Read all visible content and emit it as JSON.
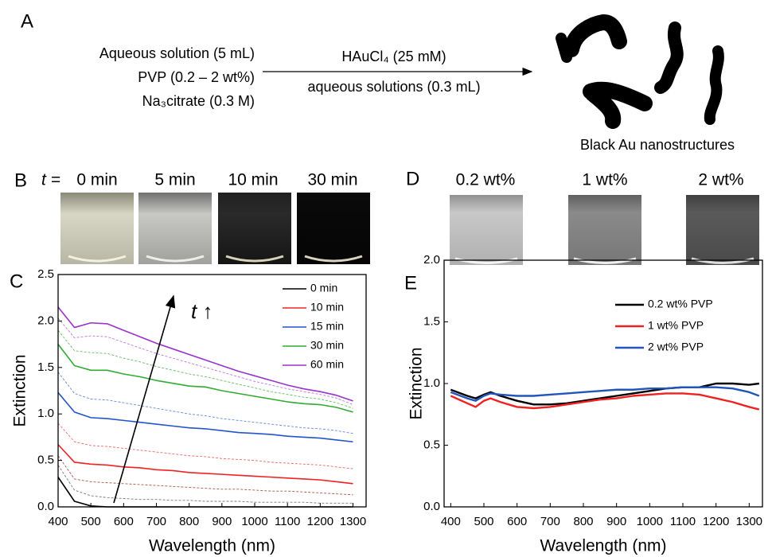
{
  "panels": [
    "A",
    "B",
    "C",
    "D",
    "E"
  ],
  "scheme": {
    "reactants": [
      "Aqueous solution (5 mL)",
      "PVP (0.2 – 2 wt%)",
      "Na₃citrate (0.3 M)"
    ],
    "arrow_top": "HAuCl₄ (25 mM)",
    "arrow_bottom": "aqueous solutions (0.3 mL)",
    "product": "Black Au nanostructures"
  },
  "photos_b": {
    "prefix": "t =",
    "labels": [
      "0 min",
      "5 min",
      "10 min",
      "30 min"
    ]
  },
  "photos_d": {
    "labels": [
      "0.2 wt%",
      "1 wt%",
      "2 wt%"
    ]
  },
  "chart_data": [
    {
      "type": "line",
      "xlabel": "Wavelength (nm)",
      "ylabel": "Extinction",
      "annotation": "t ↑",
      "xlim": [
        400,
        1340
      ],
      "ylim": [
        0,
        2.5
      ],
      "xticks": [
        400,
        500,
        600,
        700,
        800,
        900,
        1000,
        1100,
        1200,
        1300
      ],
      "yticks": [
        {
          "value": 0,
          "label": "0.0"
        },
        0.5,
        {
          "value": 1,
          "label": "1.0"
        },
        1.5,
        {
          "value": 2,
          "label": "2.0"
        },
        2.5
      ],
      "legend": "upper right",
      "x": [
        400,
        450,
        500,
        550,
        600,
        650,
        700,
        750,
        800,
        850,
        900,
        950,
        1000,
        1050,
        1100,
        1150,
        1200,
        1250,
        1300
      ],
      "series": [
        {
          "name": "0 min",
          "color": "#000000",
          "values": [
            0.32,
            0.06,
            0.01,
            0,
            0,
            0,
            0,
            0,
            0,
            0,
            0,
            0,
            0,
            0,
            0,
            0,
            0,
            0,
            0
          ]
        },
        {
          "name": "10 min",
          "color": "#ee2222",
          "values": [
            0.67,
            0.48,
            0.46,
            0.45,
            0.43,
            0.42,
            0.4,
            0.39,
            0.37,
            0.36,
            0.35,
            0.34,
            0.33,
            0.32,
            0.31,
            0.3,
            0.29,
            0.27,
            0.25
          ]
        },
        {
          "name": "15 min",
          "color": "#2255cc",
          "values": [
            1.23,
            1.02,
            0.96,
            0.95,
            0.93,
            0.91,
            0.89,
            0.87,
            0.85,
            0.84,
            0.82,
            0.8,
            0.79,
            0.78,
            0.76,
            0.75,
            0.74,
            0.72,
            0.7
          ]
        },
        {
          "name": "30 min",
          "color": "#33aa33",
          "values": [
            1.75,
            1.52,
            1.47,
            1.47,
            1.43,
            1.4,
            1.36,
            1.33,
            1.3,
            1.29,
            1.25,
            1.22,
            1.19,
            1.16,
            1.13,
            1.11,
            1.1,
            1.07,
            1.02
          ]
        },
        {
          "name": "60 min",
          "color": "#9933cc",
          "values": [
            2.15,
            1.93,
            1.98,
            1.97,
            1.9,
            1.83,
            1.76,
            1.7,
            1.64,
            1.58,
            1.52,
            1.46,
            1.41,
            1.36,
            1.31,
            1.27,
            1.24,
            1.2,
            1.14
          ]
        }
      ],
      "dashed_series": [
        {
          "color": "#777777",
          "values": [
            0.45,
            0.18,
            0.12,
            0.1,
            0.09,
            0.08,
            0.08,
            0.07,
            0.07,
            0.06,
            0.06,
            0.06,
            0.05,
            0.05,
            0.05,
            0.05,
            0.04,
            0.04,
            0.04
          ]
        },
        {
          "color": "#aa5544",
          "values": [
            0.55,
            0.3,
            0.27,
            0.26,
            0.25,
            0.24,
            0.23,
            0.22,
            0.21,
            0.2,
            0.19,
            0.19,
            0.18,
            0.17,
            0.17,
            0.16,
            0.15,
            0.14,
            0.13
          ]
        },
        {
          "color": "#ee6666",
          "values": [
            0.9,
            0.7,
            0.66,
            0.65,
            0.63,
            0.61,
            0.59,
            0.57,
            0.55,
            0.54,
            0.52,
            0.51,
            0.5,
            0.48,
            0.47,
            0.46,
            0.45,
            0.43,
            0.41
          ]
        },
        {
          "color": "#6688dd",
          "values": [
            1.45,
            1.22,
            1.16,
            1.15,
            1.12,
            1.09,
            1.06,
            1.03,
            1.0,
            0.98,
            0.95,
            0.93,
            0.91,
            0.89,
            0.87,
            0.85,
            0.84,
            0.82,
            0.79
          ]
        },
        {
          "color": "#66bb66",
          "values": [
            1.9,
            1.68,
            1.66,
            1.65,
            1.6,
            1.56,
            1.51,
            1.47,
            1.43,
            1.4,
            1.36,
            1.32,
            1.28,
            1.24,
            1.21,
            1.18,
            1.16,
            1.12,
            1.06
          ]
        },
        {
          "color": "#bb77dd",
          "values": [
            2.03,
            1.82,
            1.84,
            1.83,
            1.77,
            1.71,
            1.65,
            1.6,
            1.55,
            1.5,
            1.45,
            1.4,
            1.35,
            1.31,
            1.27,
            1.24,
            1.21,
            1.17,
            1.1
          ]
        }
      ]
    },
    {
      "type": "line",
      "xlabel": "Wavelength (nm)",
      "ylabel": "Extinction",
      "xlim": [
        380,
        1340
      ],
      "ylim": [
        0,
        2
      ],
      "xticks": [
        400,
        500,
        600,
        700,
        800,
        900,
        1000,
        1100,
        1200,
        1300
      ],
      "yticks": [
        {
          "value": 0,
          "label": "0.0"
        },
        0.5,
        {
          "value": 1,
          "label": "1.0"
        },
        1.5,
        {
          "value": 2,
          "label": "2.0"
        }
      ],
      "legend": "upper right",
      "x": [
        400,
        450,
        475,
        500,
        520,
        550,
        600,
        650,
        700,
        750,
        800,
        850,
        900,
        950,
        1000,
        1050,
        1100,
        1150,
        1200,
        1250,
        1300,
        1330
      ],
      "series": [
        {
          "name": "0.2 wt% PVP",
          "color": "#000000",
          "values": [
            0.95,
            0.9,
            0.88,
            0.91,
            0.93,
            0.9,
            0.86,
            0.83,
            0.83,
            0.84,
            0.86,
            0.88,
            0.9,
            0.92,
            0.94,
            0.96,
            0.97,
            0.97,
            1.0,
            1.0,
            0.99,
            1.0
          ]
        },
        {
          "name": "1 wt% PVP",
          "color": "#ee2222",
          "values": [
            0.9,
            0.84,
            0.81,
            0.86,
            0.88,
            0.85,
            0.81,
            0.8,
            0.81,
            0.83,
            0.85,
            0.87,
            0.88,
            0.9,
            0.91,
            0.92,
            0.92,
            0.91,
            0.88,
            0.85,
            0.81,
            0.79
          ]
        },
        {
          "name": "2 wt% PVP",
          "color": "#2255bb",
          "values": [
            0.93,
            0.88,
            0.86,
            0.9,
            0.92,
            0.91,
            0.9,
            0.9,
            0.91,
            0.92,
            0.93,
            0.94,
            0.95,
            0.95,
            0.96,
            0.96,
            0.97,
            0.97,
            0.97,
            0.96,
            0.93,
            0.9
          ]
        }
      ]
    }
  ]
}
